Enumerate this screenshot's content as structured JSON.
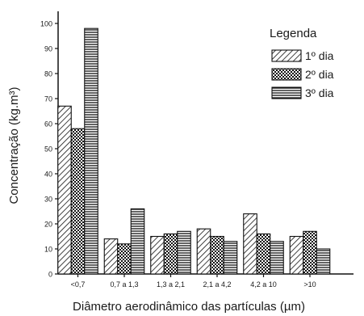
{
  "chart_data": {
    "type": "bar",
    "title": "",
    "xlabel": "Diâmetro aerodinâmico das partículas (µm)",
    "ylabel": "Concentração (kg.m³)",
    "ylim": [
      0,
      100
    ],
    "yticks": [
      0,
      10,
      20,
      30,
      40,
      50,
      60,
      70,
      80,
      90,
      100
    ],
    "categories": [
      "<0,7",
      "0,7 a 1,3",
      "1,3 a 2,1",
      "2,1 a 4,2",
      "4,2 a 10",
      ">10"
    ],
    "legend": {
      "title": "Legenda",
      "position": "top-right"
    },
    "grid": false,
    "series": [
      {
        "name": "1º dia",
        "pattern": "diagonal-hatch",
        "values": [
          67,
          14,
          15,
          18,
          24,
          15
        ]
      },
      {
        "name": "2º dia",
        "pattern": "crosshatch",
        "values": [
          58,
          12,
          16,
          15,
          16,
          17
        ]
      },
      {
        "name": "3º dia",
        "pattern": "horizontal-lines",
        "values": [
          98,
          26,
          17,
          13,
          13,
          10
        ]
      }
    ]
  }
}
